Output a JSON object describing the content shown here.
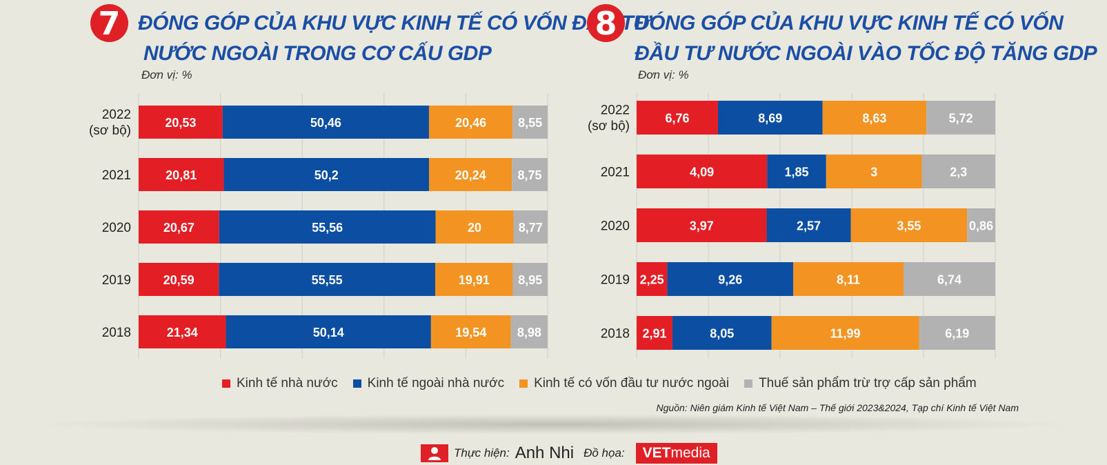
{
  "left": {
    "number": "7",
    "title_line1": "ĐÓNG GÓP CỦA KHU VỰC KINH TẾ CÓ VỐN ĐẦU TƯ",
    "title_line2": "NƯỚC NGOÀI TRONG CƠ CẤU GDP",
    "unit": "Đơn vị: %"
  },
  "right": {
    "number": "8",
    "title_line1": "ĐÓNG GÓP CỦA KHU VỰC KINH TẾ CÓ VỐN",
    "title_line2": "ĐẦU TƯ NƯỚC NGOÀI VÀO TỐC ĐỘ TĂNG GDP",
    "unit": "Đơn vị: %"
  },
  "legend": [
    {
      "label": "Kinh tế nhà nước",
      "color": "#e31e25"
    },
    {
      "label": "Kinh tế ngoài nhà nước",
      "color": "#0b4ea2"
    },
    {
      "label": "Kinh tế có vốn đầu tư nước ngoài",
      "color": "#f39322"
    },
    {
      "label": "Thuế sản phẩm trừ trợ cấp sản phẩm",
      "color": "#b2b2b2"
    }
  ],
  "source": "Nguồn: Niên giám Kinh tế Việt Nam – Thế giới 2023&2024, Tạp chí Kinh tế Việt Nam",
  "footer": {
    "author_label": "Thực hiện:",
    "author_name": "Anh Nhi",
    "graphics_label": "Đồ họa:",
    "logo_bold": "VET",
    "logo_rest": "media"
  },
  "chart_data": [
    {
      "type": "bar",
      "orientation": "horizontal",
      "stacked": true,
      "title": "ĐÓNG GÓP CỦA KHU VỰC KINH TẾ CÓ VỐN ĐẦU TƯ NƯỚC NGOÀI TRONG CƠ CẤU GDP",
      "unit": "%",
      "categories": [
        [
          "2022",
          "(sơ bộ)"
        ],
        [
          "2021"
        ],
        [
          "2020"
        ],
        [
          "2019"
        ],
        [
          "2018"
        ]
      ],
      "series": [
        {
          "name": "Kinh tế nhà nước",
          "color": "#e31e25",
          "values": [
            20.53,
            20.81,
            20.67,
            20.59,
            21.34
          ],
          "labels": [
            "20,53",
            "20,81",
            "20,67",
            "20,59",
            "21,34"
          ]
        },
        {
          "name": "Kinh tế ngoài nhà nước",
          "color": "#0b4ea2",
          "values": [
            50.46,
            50.2,
            55.56,
            55.55,
            50.14
          ],
          "labels": [
            "50,46",
            "50,2",
            "55,56",
            "55,55",
            "50,14"
          ]
        },
        {
          "name": "Kinh tế có vốn đầu tư nước ngoài",
          "color": "#f39322",
          "values": [
            20.46,
            20.24,
            20,
            19.91,
            19.54
          ],
          "labels": [
            "20,46",
            "20,24",
            "20",
            "19,91",
            "19,54"
          ]
        },
        {
          "name": "Thuế sản phẩm trừ trợ cấp sản phẩm",
          "color": "#b2b2b2",
          "values": [
            8.55,
            8.75,
            8.77,
            8.95,
            8.98
          ],
          "labels": [
            "8,55",
            "8,75",
            "8,77",
            "8,95",
            "8,98"
          ]
        }
      ],
      "grid": true
    },
    {
      "type": "bar",
      "orientation": "horizontal",
      "stacked": true,
      "title": "ĐÓNG GÓP CỦA KHU VỰC KINH TẾ CÓ VỐN ĐẦU TƯ NƯỚC NGOÀI VÀO TỐC ĐỘ TĂNG GDP",
      "unit": "%",
      "categories": [
        [
          "2022",
          "(sơ bộ)"
        ],
        [
          "2021"
        ],
        [
          "2020"
        ],
        [
          "2019"
        ],
        [
          "2018"
        ]
      ],
      "series": [
        {
          "name": "Kinh tế nhà nước",
          "color": "#e31e25",
          "values": [
            6.76,
            4.09,
            3.97,
            2.25,
            2.91
          ],
          "labels": [
            "6,76",
            "4,09",
            "3,97",
            "2,25",
            "2,91"
          ]
        },
        {
          "name": "Kinh tế ngoài nhà nước",
          "color": "#0b4ea2",
          "values": [
            8.69,
            1.85,
            2.57,
            9.26,
            8.05
          ],
          "labels": [
            "8,69",
            "1,85",
            "2,57",
            "9,26",
            "8,05"
          ]
        },
        {
          "name": "Kinh tế có vốn đầu tư nước ngoài",
          "color": "#f39322",
          "values": [
            8.63,
            3,
            3.55,
            8.11,
            11.99
          ],
          "labels": [
            "8,63",
            "3",
            "3,55",
            "8,11",
            "11,99"
          ]
        },
        {
          "name": "Thuế sản phẩm trừ trợ cấp sản phẩm",
          "color": "#b2b2b2",
          "values": [
            5.72,
            2.3,
            0.86,
            6.74,
            6.19
          ],
          "labels": [
            "5,72",
            "2,3",
            "0,86",
            "6,74",
            "6,19"
          ]
        }
      ],
      "grid": true
    }
  ]
}
